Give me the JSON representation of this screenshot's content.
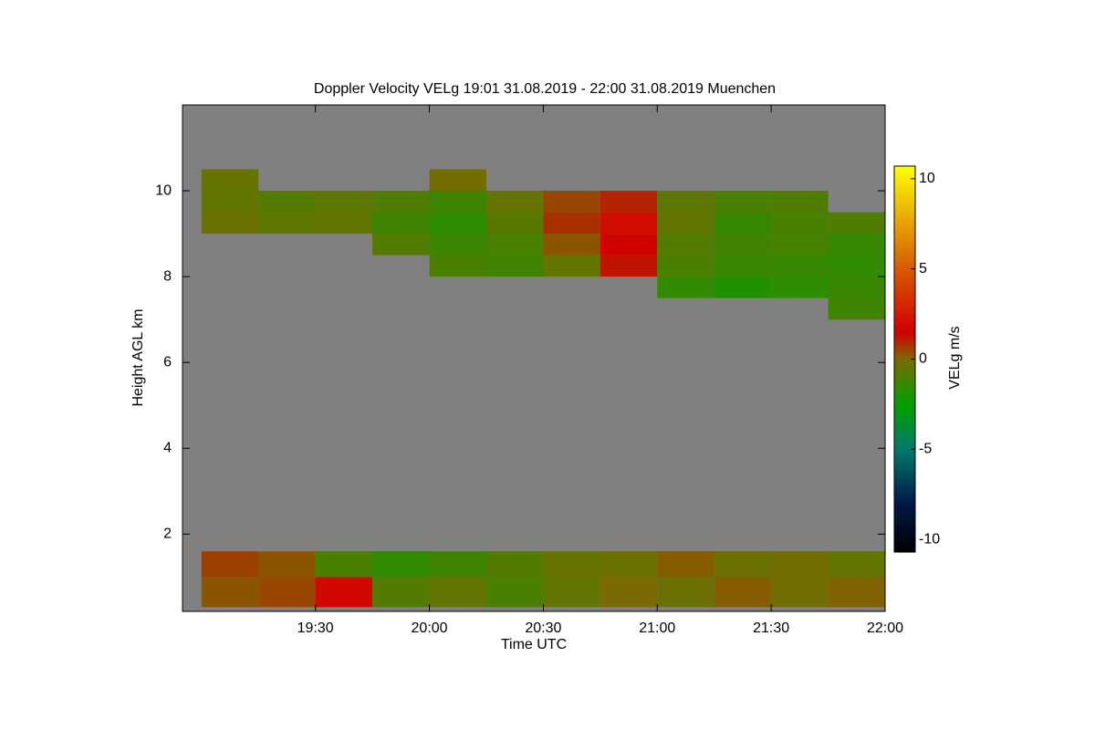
{
  "chart_data": {
    "type": "heatmap",
    "title": "Doppler Velocity VELg   19:01 31.08.2019 - 22:00 31.08.2019 Muenchen",
    "xlabel": "Time UTC",
    "ylabel": "Height AGL km",
    "colorbar_label": "VELg m/s",
    "xlim": [
      "18:55",
      "22:00"
    ],
    "xticks": [
      "19:30",
      "20:00",
      "20:30",
      "21:00",
      "21:30",
      "22:00"
    ],
    "ylim": [
      0.2,
      12
    ],
    "yticks": [
      2,
      4,
      6,
      8,
      10
    ],
    "zlim": [
      -10.7,
      10.7
    ],
    "zticks": [
      -10,
      -5,
      0,
      5,
      10
    ],
    "background": "#808080",
    "colorscale": [
      [
        -10.7,
        "#000000"
      ],
      [
        -8,
        "#001848"
      ],
      [
        -5,
        "#007a6a"
      ],
      [
        -2.5,
        "#00a000"
      ],
      [
        0,
        "#7a6a00"
      ],
      [
        1.5,
        "#d00000"
      ],
      [
        5,
        "#d85a00"
      ],
      [
        8,
        "#e8b000"
      ],
      [
        10.7,
        "#ffff00"
      ]
    ],
    "xbins": [
      "19:00",
      "19:15",
      "19:30",
      "19:45",
      "20:00",
      "20:15",
      "20:30",
      "20:45",
      "21:00",
      "21:15",
      "21:30",
      "21:45",
      "22:00"
    ],
    "ybins": [
      0.3,
      1,
      1.6,
      7,
      7.5,
      8,
      8.5,
      9,
      9.5,
      10,
      10.5
    ],
    "z": [
      [
        0.3,
        0.5,
        1.8,
        -0.8,
        -0.5,
        -1,
        -0.5,
        0,
        -0.3,
        0.2,
        -0.2,
        0.1
      ],
      [
        0.6,
        0.3,
        -1,
        -1.5,
        -1.2,
        -0.8,
        -0.4,
        -0.3,
        0.2,
        -0.3,
        -0.2,
        -0.5
      ],
      [
        null,
        null,
        null,
        null,
        null,
        null,
        null,
        null,
        null,
        null,
        null,
        null
      ],
      [
        null,
        null,
        null,
        null,
        null,
        null,
        null,
        null,
        null,
        null,
        null,
        -1.2
      ],
      [
        null,
        null,
        null,
        null,
        null,
        null,
        null,
        null,
        -1.5,
        -1.8,
        -1.6,
        -1.3
      ],
      [
        null,
        null,
        null,
        null,
        -1,
        -1.2,
        -0.5,
        1.2,
        -1,
        -1.3,
        -1.4,
        -1.5
      ],
      [
        null,
        null,
        null,
        -0.8,
        -1.3,
        -1,
        0.3,
        1.6,
        -0.8,
        -1.2,
        -1.1,
        -1.4
      ],
      [
        -0.3,
        -0.6,
        -0.5,
        -1.2,
        -1.6,
        -0.7,
        0.8,
        2,
        -0.5,
        -1.4,
        -1,
        -0.9
      ],
      [
        -0.5,
        -0.8,
        -0.6,
        -0.9,
        -1.2,
        -0.4,
        0.5,
        1,
        -0.6,
        -1,
        -0.9,
        null
      ],
      [
        -0.4,
        null,
        null,
        null,
        -0.2,
        null,
        null,
        null,
        null,
        null,
        null,
        null
      ]
    ]
  }
}
